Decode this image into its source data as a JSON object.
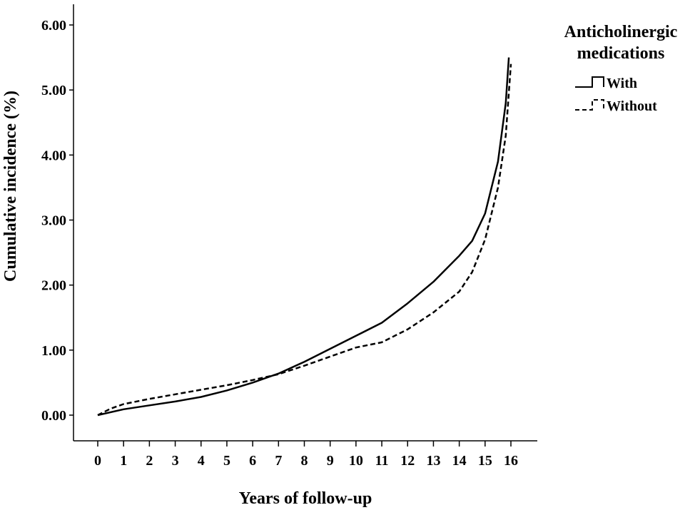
{
  "chart_data": {
    "type": "line",
    "title": "",
    "xlabel": "Years of follow-up",
    "ylabel": "Cumulative incidence (%)",
    "xlim": [
      0,
      16
    ],
    "ylim": [
      0,
      6
    ],
    "x_ticks": [
      "0",
      "1",
      "2",
      "3",
      "4",
      "5",
      "6",
      "7",
      "8",
      "9",
      "10",
      "11",
      "12",
      "13",
      "14",
      "15",
      "16"
    ],
    "y_ticks": [
      "0.00",
      "1.00",
      "2.00",
      "3.00",
      "4.00",
      "5.00",
      "6.00"
    ],
    "grid": false,
    "legend_placement": "right",
    "legend_title": "Anticholinergic medications",
    "legend_title_lines": [
      "Anticholinergic",
      "medications"
    ],
    "series": [
      {
        "name": "With",
        "style": "solid",
        "color": "#000000",
        "points": [
          [
            0,
            0
          ],
          [
            1,
            0.09
          ],
          [
            2,
            0.15
          ],
          [
            3,
            0.21
          ],
          [
            4,
            0.28
          ],
          [
            5,
            0.38
          ],
          [
            6,
            0.5
          ],
          [
            7,
            0.64
          ],
          [
            8,
            0.82
          ],
          [
            9,
            1.02
          ],
          [
            10,
            1.22
          ],
          [
            11,
            1.42
          ],
          [
            12,
            1.72
          ],
          [
            13,
            2.05
          ],
          [
            14,
            2.45
          ],
          [
            14.5,
            2.68
          ],
          [
            15,
            3.1
          ],
          [
            15.5,
            3.9
          ],
          [
            15.8,
            4.8
          ],
          [
            15.92,
            5.5
          ]
        ]
      },
      {
        "name": "Without",
        "style": "dashed",
        "color": "#000000",
        "points": [
          [
            0,
            0
          ],
          [
            0.5,
            0.1
          ],
          [
            1,
            0.17
          ],
          [
            2,
            0.25
          ],
          [
            3,
            0.32
          ],
          [
            4,
            0.39
          ],
          [
            5,
            0.46
          ],
          [
            6,
            0.54
          ],
          [
            7,
            0.63
          ],
          [
            8,
            0.76
          ],
          [
            9,
            0.9
          ],
          [
            10,
            1.04
          ],
          [
            11,
            1.12
          ],
          [
            12,
            1.32
          ],
          [
            13,
            1.58
          ],
          [
            14,
            1.9
          ],
          [
            14.5,
            2.2
          ],
          [
            15,
            2.7
          ],
          [
            15.5,
            3.5
          ],
          [
            15.8,
            4.3
          ],
          [
            16,
            5.4
          ]
        ]
      }
    ]
  }
}
